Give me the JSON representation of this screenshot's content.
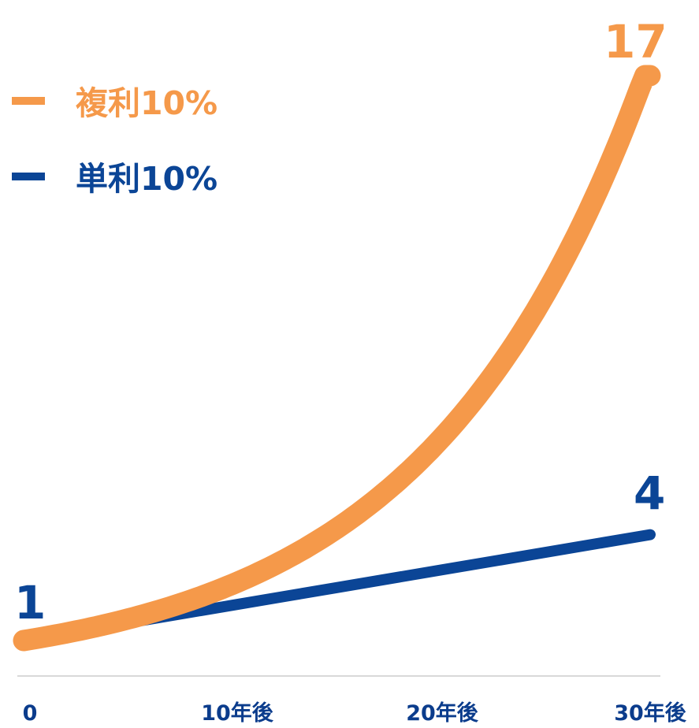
{
  "colors": {
    "compound": "#f5994a",
    "simple": "#0b4596",
    "axis": "#d9d9d9",
    "tick_text": "#0b3c8c"
  },
  "chart_data": {
    "type": "line",
    "title": "",
    "xlabel": "",
    "ylabel": "",
    "x": [
      0,
      5,
      10,
      15,
      20,
      25,
      30
    ],
    "x_ticks": [
      {
        "value": 0,
        "label": "0"
      },
      {
        "value": 10,
        "label": "10年後"
      },
      {
        "value": 20,
        "label": "20年後"
      },
      {
        "value": 30,
        "label": "30年後"
      }
    ],
    "xlim": [
      0,
      30
    ],
    "ylim": [
      1,
      17
    ],
    "grid": false,
    "legend_position": "top-left",
    "series": [
      {
        "name": "複利10%",
        "color": "#f5994a",
        "values": [
          1,
          1.61,
          2.59,
          4.18,
          6.73,
          10.83,
          17.45
        ]
      },
      {
        "name": "単利10%",
        "color": "#0b4596",
        "values": [
          1,
          1.5,
          2,
          2.5,
          3,
          3.5,
          4
        ]
      }
    ],
    "annotations": {
      "start_label": "1",
      "compound_end_label": "17",
      "simple_end_label": "4"
    }
  }
}
